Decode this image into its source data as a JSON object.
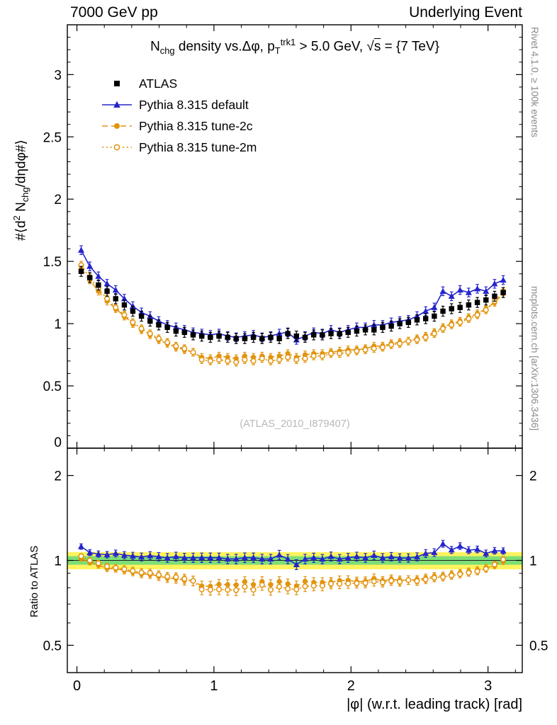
{
  "header": {
    "left": "7000 GeV pp",
    "right": "Underlying Event"
  },
  "main_plot": {
    "title": {
      "t1": "N",
      "t1sub": "chg",
      "t2": " density vs.Δφ, p",
      "t2sub": "T",
      "t2sup": "trk1",
      "t3": " > 5.0 GeV, ",
      "t4": "√",
      "t4s": "s",
      "t5": " = {7 TeV}"
    },
    "ylabel": {
      "y1": "#⟨d",
      "y1sup": "2",
      "y2": " N",
      "y2sub": "chg",
      "y3": "/dηdφ#⟩"
    }
  },
  "ratio_plot": {
    "ylabel": "Ratio to ATLAS"
  },
  "xaxis_title": "|φ| (w.r.t. leading track) [rad]",
  "side_texts": {
    "rivet": "Rivet 4.1.0, ≥ 100k events",
    "mcplots": "mcplots.cern.ch [arXiv:1306.3436]"
  },
  "watermark": "(ATLAS_2010_I879407)",
  "chart_data": {
    "type": "scatter",
    "title": "Nchg density vs. Δφ, pT^trk1 > 5.0 GeV, √s = {7 TeV}",
    "xlabel": "|φ| (w.r.t. leading track) [rad]",
    "ylabel": "#⟨d2 Nchg/dηdφ#⟩",
    "ratio_ylabel": "Ratio to ATLAS",
    "xlim": [
      -0.07,
      3.25
    ],
    "ylim_main": [
      0,
      3.4
    ],
    "ylim_ratio": [
      0.4,
      2.5
    ],
    "ratio_scale": "log",
    "legend_position": "top-left",
    "grid": false,
    "xticks": {
      "major": [
        0,
        1,
        2,
        3
      ],
      "labels": [
        "0",
        "1",
        "2",
        "3"
      ],
      "minor_step": 0.2
    },
    "yticks_main": {
      "major": [
        0,
        0.5,
        1,
        1.5,
        2,
        2.5,
        3
      ],
      "labels": [
        "0",
        "0.5",
        "1",
        "1.5",
        "2",
        "2.5",
        "3"
      ],
      "minor_step": 0.1
    },
    "yticks_ratio": {
      "major": [
        0.5,
        1,
        2
      ],
      "labels": [
        "0.5",
        "1",
        "2"
      ],
      "minor": [
        0.4,
        0.6,
        0.7,
        0.8,
        0.9
      ]
    },
    "ratio_bands": [
      {
        "lo": 0.93,
        "hi": 1.07,
        "color": "#fff35e"
      },
      {
        "lo": 0.965,
        "hi": 1.035,
        "color": "#7ede76"
      }
    ],
    "ratio_reference": 1,
    "x": [
      0.031,
      0.094,
      0.157,
      0.22,
      0.283,
      0.346,
      0.408,
      0.471,
      0.534,
      0.597,
      0.66,
      0.723,
      0.785,
      0.848,
      0.911,
      0.974,
      1.037,
      1.1,
      1.162,
      1.225,
      1.288,
      1.351,
      1.414,
      1.477,
      1.539,
      1.602,
      1.665,
      1.728,
      1.791,
      1.854,
      1.917,
      1.979,
      2.042,
      2.105,
      2.168,
      2.231,
      2.294,
      2.356,
      2.419,
      2.482,
      2.545,
      2.608,
      2.671,
      2.734,
      2.796,
      2.859,
      2.922,
      2.985,
      3.048,
      3.111
    ],
    "series": [
      {
        "name": "ATLAS",
        "marker": "square",
        "color": "#000000",
        "line": "none",
        "err": 0.04,
        "values": [
          1.42,
          1.37,
          1.31,
          1.26,
          1.2,
          1.15,
          1.1,
          1.06,
          1.02,
          0.99,
          0.97,
          0.94,
          0.93,
          0.91,
          0.9,
          0.89,
          0.9,
          0.89,
          0.88,
          0.88,
          0.89,
          0.88,
          0.89,
          0.88,
          0.92,
          0.9,
          0.89,
          0.91,
          0.91,
          0.92,
          0.92,
          0.93,
          0.94,
          0.95,
          0.95,
          0.97,
          0.98,
          1.0,
          1.01,
          1.03,
          1.04,
          1.06,
          1.1,
          1.12,
          1.13,
          1.15,
          1.17,
          1.19,
          1.22,
          1.25
        ]
      },
      {
        "name": "Pythia 8.315 default",
        "marker": "triangle",
        "color": "#2525cc",
        "line": "solid",
        "err": 0.035,
        "values": [
          1.59,
          1.46,
          1.38,
          1.32,
          1.27,
          1.2,
          1.14,
          1.09,
          1.06,
          1.02,
          0.99,
          0.97,
          0.95,
          0.93,
          0.92,
          0.91,
          0.92,
          0.9,
          0.89,
          0.9,
          0.91,
          0.89,
          0.9,
          0.92,
          0.93,
          0.87,
          0.9,
          0.93,
          0.92,
          0.95,
          0.93,
          0.95,
          0.97,
          0.97,
          0.99,
          0.99,
          1.01,
          1.02,
          1.03,
          1.06,
          1.1,
          1.13,
          1.26,
          1.22,
          1.27,
          1.25,
          1.28,
          1.26,
          1.32,
          1.35
        ]
      },
      {
        "name": "Pythia 8.315 tune-2c",
        "marker": "circle",
        "color": "#e2940e",
        "line": "dashed",
        "err": 0.03,
        "values": [
          1.44,
          1.35,
          1.26,
          1.18,
          1.12,
          1.06,
          1.0,
          0.95,
          0.91,
          0.87,
          0.84,
          0.81,
          0.79,
          0.77,
          0.73,
          0.72,
          0.74,
          0.73,
          0.72,
          0.74,
          0.73,
          0.74,
          0.73,
          0.74,
          0.76,
          0.73,
          0.75,
          0.76,
          0.76,
          0.77,
          0.78,
          0.79,
          0.79,
          0.8,
          0.82,
          0.82,
          0.84,
          0.85,
          0.86,
          0.88,
          0.9,
          0.93,
          0.97,
          1.0,
          1.02,
          1.05,
          1.08,
          1.12,
          1.17,
          1.24
        ]
      },
      {
        "name": "Pythia 8.315 tune-2m",
        "marker": "circle-open",
        "color": "#e2940e",
        "line": "dotted",
        "err": 0.03,
        "values": [
          1.47,
          1.37,
          1.28,
          1.2,
          1.13,
          1.07,
          1.01,
          0.96,
          0.92,
          0.88,
          0.85,
          0.82,
          0.8,
          0.77,
          0.71,
          0.7,
          0.71,
          0.7,
          0.69,
          0.71,
          0.7,
          0.72,
          0.7,
          0.71,
          0.73,
          0.71,
          0.72,
          0.74,
          0.74,
          0.76,
          0.76,
          0.77,
          0.78,
          0.79,
          0.8,
          0.81,
          0.83,
          0.84,
          0.86,
          0.87,
          0.89,
          0.92,
          0.96,
          0.99,
          1.01,
          1.04,
          1.07,
          1.11,
          1.18,
          1.26
        ]
      }
    ]
  }
}
